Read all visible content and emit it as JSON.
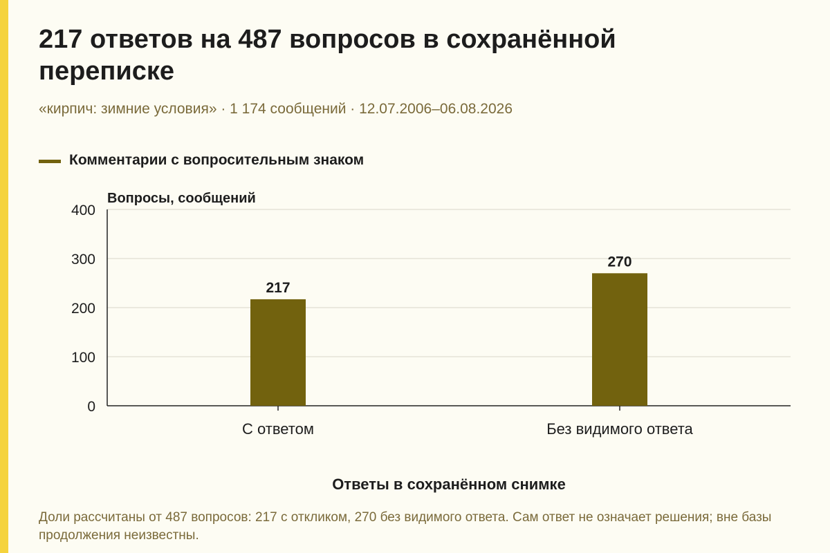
{
  "title": "217 ответов на 487 вопросов в сохранённой переписке",
  "subtitle": "«кирпич: зимние условия» · 1 174 сообщений · 12.07.2006–06.08.2026",
  "footnote": "Доли рассчитаны от 487 вопросов: 217 с откликом, 270 без видимого ответа. Сам ответ не означает решения; вне базы продолжения неизвестны.",
  "colors": {
    "accent": "#f5d33d",
    "bar": "#72620e",
    "background": "#fdfcf3"
  },
  "chart_data": {
    "type": "bar",
    "categories": [
      "С ответом",
      "Без видимого ответа"
    ],
    "series": [
      {
        "name": "Комментарии с вопросительным знаком",
        "values": [
          217,
          270
        ]
      }
    ],
    "data_labels": [
      "217",
      "270"
    ],
    "ylabel": "Вопросы, сообщений",
    "xlabel": "Ответы в сохранённом снимке",
    "ylim": [
      0,
      400
    ],
    "yticks": [
      0,
      100,
      200,
      300,
      400
    ],
    "grid": true,
    "legend": "top-left"
  }
}
